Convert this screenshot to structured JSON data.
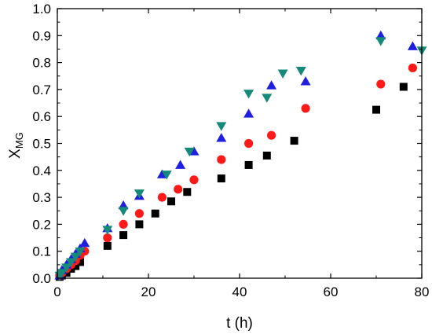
{
  "chart_data": {
    "type": "scatter",
    "xlabel": "t (h)",
    "ylabel_main": "X",
    "ylabel_sub": "MG",
    "xlim": [
      0,
      80
    ],
    "ylim": [
      0.0,
      1.0
    ],
    "x_ticks": [
      0,
      20,
      40,
      60,
      80
    ],
    "x_tick_labels": [
      "0",
      "20",
      "40",
      "60",
      "80"
    ],
    "y_ticks": [
      0.0,
      0.1,
      0.2,
      0.3,
      0.4,
      0.5,
      0.6,
      0.7,
      0.8,
      0.9,
      1.0
    ],
    "y_tick_labels": [
      "0.0",
      "0.1",
      "0.2",
      "0.3",
      "0.4",
      "0.5",
      "0.6",
      "0.7",
      "0.8",
      "0.9",
      "1.0"
    ],
    "grid": false,
    "legend": "none",
    "series": [
      {
        "marker": "square",
        "color": "#000000",
        "points": [
          [
            0.5,
            0.005
          ],
          [
            1,
            0.01
          ],
          [
            2,
            0.02
          ],
          [
            3,
            0.035
          ],
          [
            4,
            0.045
          ],
          [
            5,
            0.06
          ],
          [
            11,
            0.12
          ],
          [
            14.5,
            0.16
          ],
          [
            18,
            0.2
          ],
          [
            21.5,
            0.24
          ],
          [
            25,
            0.285
          ],
          [
            28.5,
            0.32
          ],
          [
            36,
            0.37
          ],
          [
            42,
            0.42
          ],
          [
            46,
            0.455
          ],
          [
            52,
            0.51
          ],
          [
            70,
            0.625
          ],
          [
            76,
            0.71
          ]
        ]
      },
      {
        "marker": "circle",
        "color": "#ff1a1a",
        "points": [
          [
            0.5,
            0.01
          ],
          [
            1,
            0.02
          ],
          [
            2,
            0.035
          ],
          [
            3,
            0.05
          ],
          [
            4,
            0.065
          ],
          [
            5,
            0.085
          ],
          [
            6,
            0.1
          ],
          [
            11,
            0.15
          ],
          [
            14.5,
            0.2
          ],
          [
            18,
            0.24
          ],
          [
            23,
            0.3
          ],
          [
            26.5,
            0.33
          ],
          [
            30,
            0.365
          ],
          [
            36,
            0.44
          ],
          [
            42,
            0.5
          ],
          [
            47,
            0.53
          ],
          [
            54.5,
            0.63
          ],
          [
            71,
            0.72
          ],
          [
            78,
            0.78
          ]
        ]
      },
      {
        "marker": "triangle-up",
        "color": "#1f1fe0",
        "points": [
          [
            0.5,
            0.01
          ],
          [
            1,
            0.03
          ],
          [
            2,
            0.05
          ],
          [
            3,
            0.07
          ],
          [
            4,
            0.09
          ],
          [
            5,
            0.11
          ],
          [
            6,
            0.13
          ],
          [
            11,
            0.185
          ],
          [
            14.5,
            0.27
          ],
          [
            18,
            0.305
          ],
          [
            23,
            0.385
          ],
          [
            27,
            0.42
          ],
          [
            30,
            0.47
          ],
          [
            36,
            0.52
          ],
          [
            42,
            0.61
          ],
          [
            47,
            0.715
          ],
          [
            54.5,
            0.73
          ],
          [
            71,
            0.9
          ],
          [
            78,
            0.86
          ]
        ]
      },
      {
        "marker": "triangle-down",
        "color": "#168a7a",
        "points": [
          [
            0.5,
            0.01
          ],
          [
            1,
            0.02
          ],
          [
            2,
            0.04
          ],
          [
            3,
            0.06
          ],
          [
            4,
            0.08
          ],
          [
            5,
            0.1
          ],
          [
            11,
            0.18
          ],
          [
            14.5,
            0.25
          ],
          [
            18,
            0.315
          ],
          [
            24,
            0.385
          ],
          [
            29,
            0.47
          ],
          [
            36,
            0.565
          ],
          [
            42,
            0.685
          ],
          [
            46,
            0.67
          ],
          [
            49.5,
            0.76
          ],
          [
            53.5,
            0.77
          ],
          [
            71,
            0.88
          ],
          [
            80,
            0.845
          ]
        ]
      }
    ]
  }
}
